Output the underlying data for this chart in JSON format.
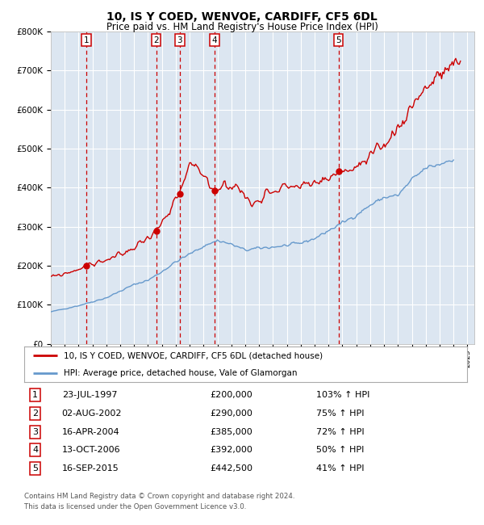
{
  "title": "10, IS Y COED, WENVOE, CARDIFF, CF5 6DL",
  "subtitle": "Price paid vs. HM Land Registry's House Price Index (HPI)",
  "legend_line1": "10, IS Y COED, WENVOE, CARDIFF, CF5 6DL (detached house)",
  "legend_line2": "HPI: Average price, detached house, Vale of Glamorgan",
  "footer1": "Contains HM Land Registry data © Crown copyright and database right 2024.",
  "footer2": "This data is licensed under the Open Government Licence v3.0.",
  "sales": [
    {
      "num": 1,
      "date_yr": 1997.558,
      "price": 200000
    },
    {
      "num": 2,
      "date_yr": 2002.583,
      "price": 290000
    },
    {
      "num": 3,
      "date_yr": 2004.292,
      "price": 385000
    },
    {
      "num": 4,
      "date_yr": 2006.786,
      "price": 392000
    },
    {
      "num": 5,
      "date_yr": 2015.711,
      "price": 442500
    }
  ],
  "hpi_label_col1": [
    "1",
    "2",
    "3",
    "4",
    "5"
  ],
  "hpi_label_col2": [
    "23-JUL-1997",
    "02-AUG-2002",
    "16-APR-2004",
    "13-OCT-2006",
    "16-SEP-2015"
  ],
  "hpi_label_col3": [
    "£200,000",
    "£290,000",
    "£385,000",
    "£392,000",
    "£442,500"
  ],
  "hpi_label_col4": [
    "103% ↑ HPI",
    "75% ↑ HPI",
    "72% ↑ HPI",
    "50% ↑ HPI",
    "41% ↑ HPI"
  ],
  "red_line_color": "#cc0000",
  "blue_line_color": "#6699cc",
  "plot_bg": "#dce6f1",
  "grid_color": "#ffffff",
  "dashed_vline_color": "#cc0000",
  "ylim": [
    0,
    800000
  ],
  "yticks": [
    0,
    100000,
    200000,
    300000,
    400000,
    500000,
    600000,
    700000,
    800000
  ],
  "xmin": 1995.0,
  "xmax": 2025.5,
  "xtick_years": [
    1995,
    1996,
    1997,
    1998,
    1999,
    2000,
    2001,
    2002,
    2003,
    2004,
    2005,
    2006,
    2007,
    2008,
    2009,
    2010,
    2011,
    2012,
    2013,
    2014,
    2015,
    2016,
    2017,
    2018,
    2019,
    2020,
    2021,
    2022,
    2023,
    2024,
    2025
  ],
  "hpi_anchors_yr": [
    1995.0,
    1996.0,
    1997.0,
    1998.0,
    1999.0,
    2000.0,
    2001.0,
    2002.0,
    2003.0,
    2004.0,
    2005.0,
    2006.0,
    2007.0,
    2008.0,
    2009.0,
    2010.0,
    2011.0,
    2012.0,
    2013.0,
    2014.0,
    2015.0,
    2016.0,
    2017.0,
    2018.0,
    2019.0,
    2020.0,
    2021.0,
    2022.0,
    2023.0,
    2024.0
  ],
  "hpi_anchors_val": [
    82000,
    90000,
    98000,
    108000,
    118000,
    135000,
    152000,
    163000,
    185000,
    210000,
    230000,
    250000,
    265000,
    255000,
    240000,
    245000,
    248000,
    252000,
    258000,
    270000,
    290000,
    310000,
    330000,
    355000,
    375000,
    380000,
    420000,
    450000,
    460000,
    475000
  ],
  "prop_anchors_yr": [
    1995.0,
    1996.5,
    1997.558,
    1999.0,
    2000.5,
    2001.5,
    2002.583,
    2003.5,
    2004.292,
    2005.0,
    2006.0,
    2006.786,
    2007.5,
    2008.5,
    2009.5,
    2010.5,
    2011.5,
    2012.5,
    2013.5,
    2014.5,
    2015.711,
    2016.5,
    2017.5,
    2018.5,
    2019.5,
    2020.5,
    2021.5,
    2022.5,
    2023.5,
    2024.5
  ],
  "prop_anchors_val": [
    170000,
    185000,
    200000,
    215000,
    235000,
    260000,
    290000,
    330000,
    385000,
    460000,
    430000,
    392000,
    410000,
    400000,
    355000,
    390000,
    400000,
    405000,
    405000,
    415000,
    442500,
    445000,
    460000,
    490000,
    530000,
    580000,
    640000,
    670000,
    700000,
    720000
  ]
}
